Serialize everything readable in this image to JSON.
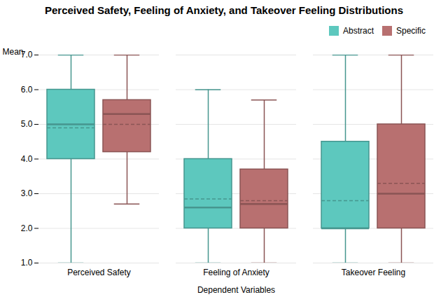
{
  "chart_data": {
    "type": "box",
    "title": "Perceived Safety, Feeling of Anxiety, and Takeover Feeling Distributions",
    "xlabel": "Dependent Variables",
    "ylabel": "Mean",
    "categories": [
      "Perceived Safety",
      "Feeling of Anxiety",
      "Takeover Feeling"
    ],
    "series": [
      {
        "name": "Abstract",
        "color": "#5DC8BE",
        "values": [
          {
            "whisker_low": 1.0,
            "q1": 4.0,
            "median": 5.0,
            "mean": 4.9,
            "q3": 6.0,
            "whisker_high": 7.0
          },
          {
            "whisker_low": 1.0,
            "q1": 2.0,
            "median": 2.6,
            "mean": 2.85,
            "q3": 4.0,
            "whisker_high": 6.0
          },
          {
            "whisker_low": 1.0,
            "q1": 2.0,
            "median": 2.0,
            "mean": 2.8,
            "q3": 4.5,
            "whisker_high": 7.0
          }
        ]
      },
      {
        "name": "Specific",
        "color": "#B87070",
        "values": [
          {
            "whisker_low": 2.7,
            "q1": 4.2,
            "median": 5.3,
            "mean": 5.0,
            "q3": 5.7,
            "whisker_high": 7.0
          },
          {
            "whisker_low": 1.0,
            "q1": 2.0,
            "median": 2.7,
            "mean": 2.8,
            "q3": 3.7,
            "whisker_high": 5.7
          },
          {
            "whisker_low": 1.0,
            "q1": 2.0,
            "median": 3.0,
            "mean": 3.3,
            "q3": 5.0,
            "whisker_high": 7.0
          }
        ]
      }
    ],
    "ylim": [
      1,
      7
    ],
    "yticks": [
      1,
      2,
      3,
      4,
      5,
      6,
      7
    ],
    "grid": true,
    "legend": "upper right"
  }
}
